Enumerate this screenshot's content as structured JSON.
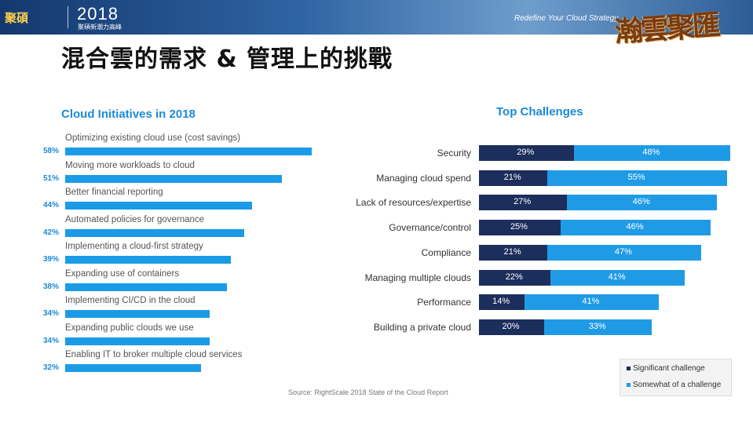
{
  "header": {
    "logo": "聚碩",
    "year": "2018",
    "year_sub": "聚碩新潮力高峰",
    "tagline": "Redefine Your Cloud Strategy",
    "calligraphy": "瀚雲聚匯"
  },
  "page_title": "混合雲的需求 & 管理上的挑戰",
  "source": "Source: RightScale 2018 State of the Cloud Report",
  "colors": {
    "accent": "#1b8ad8",
    "significant": "#1c2e5c",
    "somewhat": "#1f9be6"
  },
  "chart_data": [
    {
      "type": "bar",
      "title": "Cloud Initiatives in 2018",
      "orientation": "horizontal",
      "categories": [
        "Optimizing existing cloud use (cost savings)",
        "Moving more workloads to cloud",
        "Better financial reporting",
        "Automated policies for governance",
        "Implementing a cloud-first strategy",
        "Expanding use of containers",
        "Implementing CI/CD in the cloud",
        "Expanding public clouds we use",
        "Enabling IT to broker multiple cloud services"
      ],
      "values": [
        58,
        51,
        44,
        42,
        39,
        38,
        34,
        34,
        32
      ],
      "value_labels": [
        "58%",
        "51%",
        "44%",
        "42%",
        "39%",
        "38%",
        "34%",
        "34%",
        "32%"
      ],
      "xlim": [
        0,
        60
      ]
    },
    {
      "type": "bar",
      "stacked": true,
      "orientation": "horizontal",
      "title": "Top Challenges",
      "categories": [
        "Security",
        "Managing cloud spend",
        "Lack of resources/expertise",
        "Governance/control",
        "Compliance",
        "Managing multiple clouds",
        "Performance",
        "Building a private cloud"
      ],
      "series": [
        {
          "name": "Significant challenge",
          "values": [
            29,
            21,
            27,
            25,
            21,
            22,
            14,
            20
          ],
          "labels": [
            "29%",
            "21%",
            "27%",
            "25%",
            "21%",
            "22%",
            "14%",
            "20%"
          ]
        },
        {
          "name": "Somewhat of a challenge",
          "values": [
            48,
            55,
            46,
            46,
            47,
            41,
            41,
            33
          ],
          "labels": [
            "48%",
            "55%",
            "46%",
            "46%",
            "47%",
            "41%",
            "41%",
            "33%"
          ]
        }
      ],
      "xlim": [
        0,
        77
      ],
      "legend": "bottom-right"
    }
  ]
}
